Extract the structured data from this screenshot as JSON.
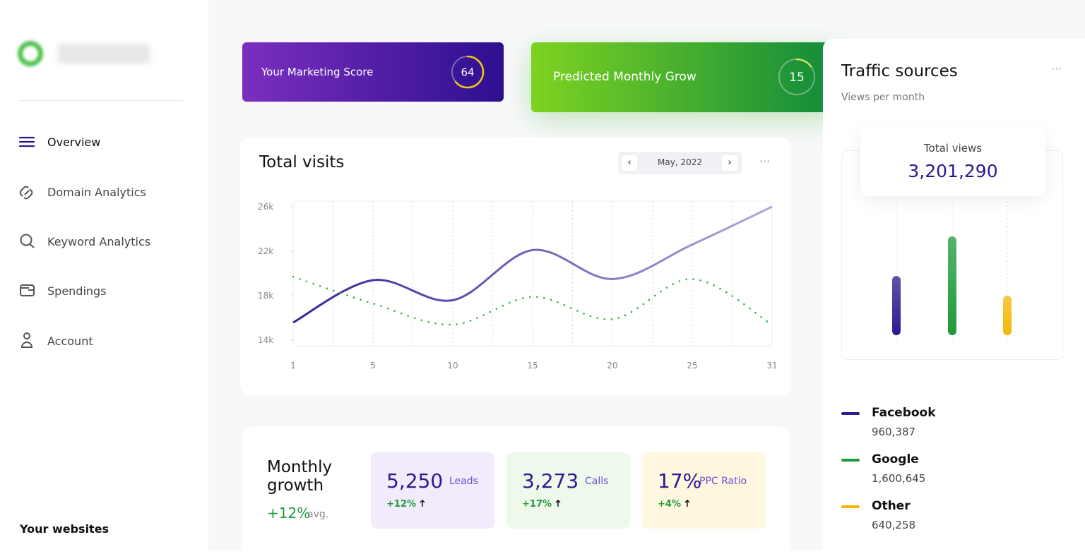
{
  "sidebar": {
    "nav": [
      "Overview",
      "Domain Analytics",
      "Keyword Analytics",
      "Spendings",
      "Account"
    ],
    "footer": "Your websites"
  },
  "score_cards": [
    {
      "label": "Your Marketing Score",
      "score": 64
    },
    {
      "label": "Predicted Monthly Grow",
      "score": 15
    }
  ],
  "total_visits": {
    "title": "Total visits",
    "period": "May, 2022",
    "chart_data": {
      "type": "line",
      "categories": [
        "1",
        "5",
        "10",
        "15",
        "20",
        "25",
        "31"
      ],
      "ylim": [
        13500,
        26500
      ],
      "yticks": [
        {
          "value": 14000,
          "label": "14k"
        },
        {
          "value": 18000,
          "label": "18k"
        },
        {
          "value": 22000,
          "label": "22k"
        },
        {
          "value": 26000,
          "label": "26k"
        }
      ],
      "series": [
        {
          "color": "#3b1f9e",
          "values": [
            15600,
            19400,
            17600,
            22100,
            19500,
            22600,
            26000
          ]
        },
        {
          "color": "#2eaa3c",
          "values": [
            19700,
            17300,
            15400,
            17900,
            15900,
            19500,
            15400
          ]
        }
      ]
    }
  },
  "monthly_growth": {
    "title": "Monthly growth",
    "change": "+12%",
    "change_note": "avg.",
    "stats": [
      {
        "value": "5,250",
        "label": "Leads",
        "change": "+12%"
      },
      {
        "value": "3,273",
        "label": "Calls",
        "change": "+17%"
      },
      {
        "value": "17%",
        "label": "PPC Ratio",
        "change": "+4%"
      }
    ]
  },
  "traffic_sources": {
    "title": "Traffic sources",
    "subtitle": "Views per month",
    "total_label": "Total views",
    "total": "3,201,290",
    "chart_data": {
      "type": "bar",
      "categories": [
        "Facebook",
        "Google",
        "Other"
      ],
      "values": [
        960387,
        1600645,
        640258
      ],
      "value_labels": [
        "960,387",
        "1,600,645",
        "640,258"
      ],
      "colors": [
        "#2d1a8f",
        "#1e9a3a",
        "#f2b705"
      ]
    }
  }
}
